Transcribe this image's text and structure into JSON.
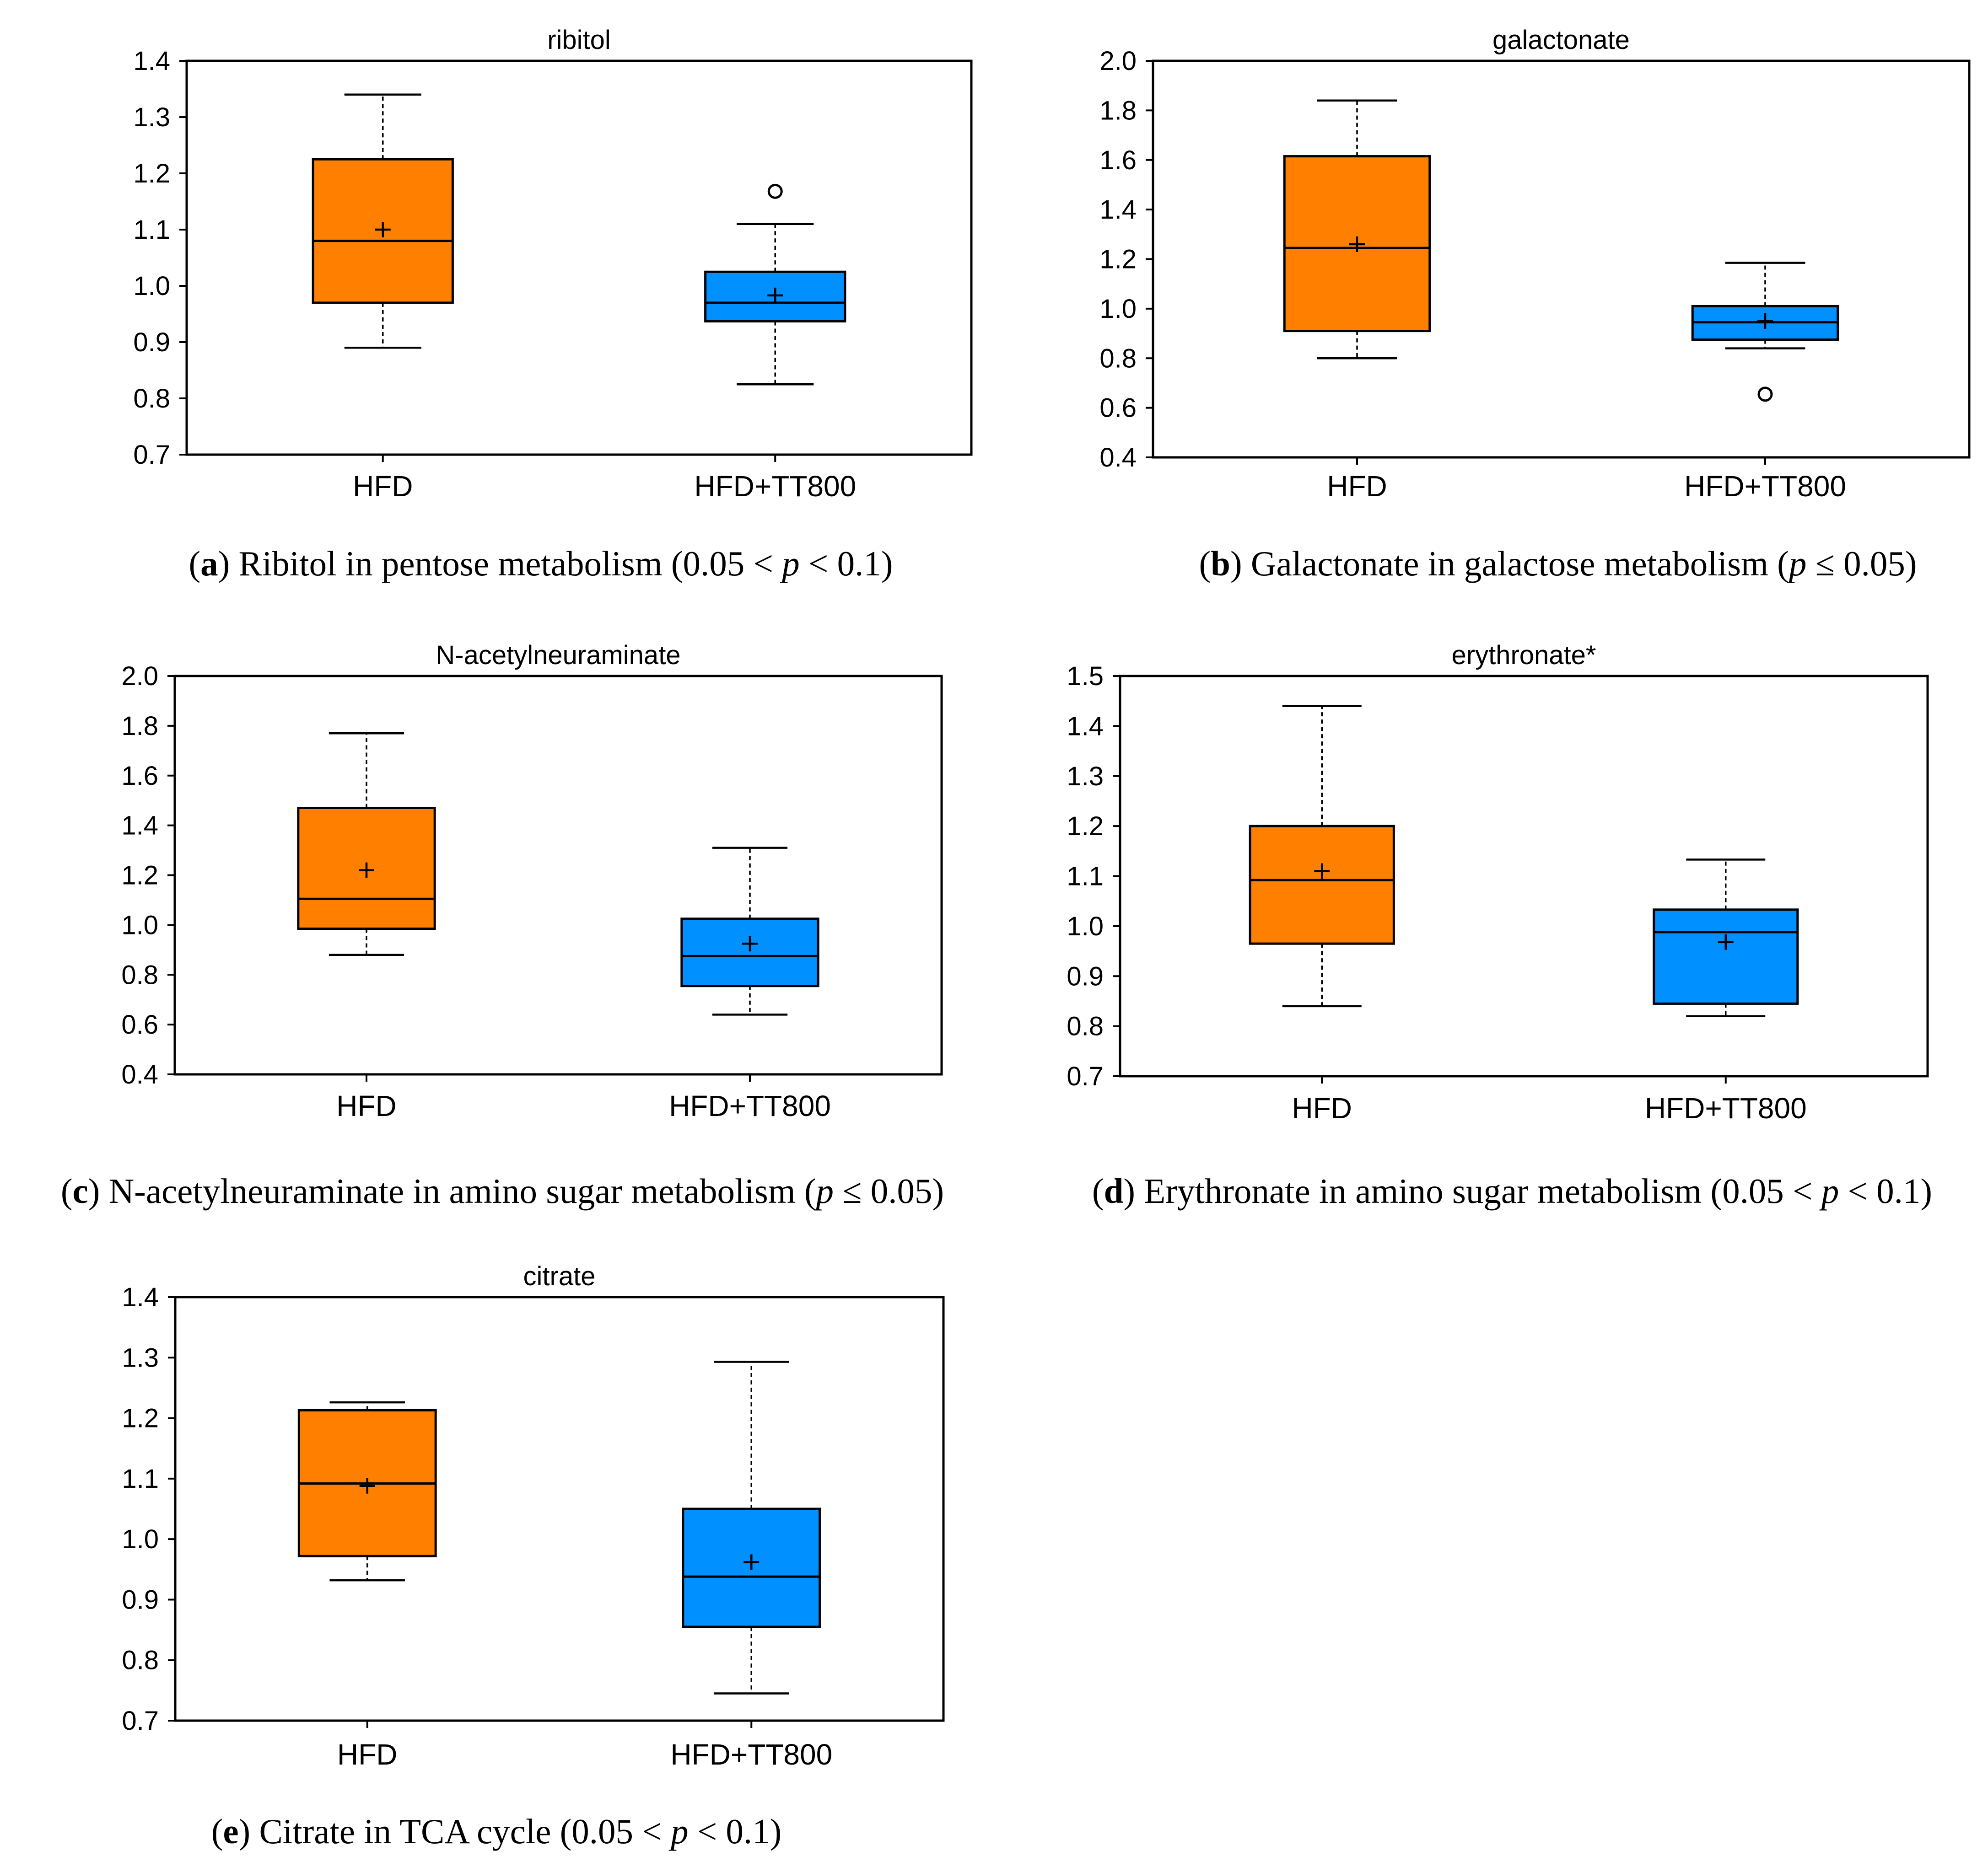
{
  "colors": {
    "hfd": "#FF8000",
    "hfd_tt800": "#0090FF",
    "axis": "#000000"
  },
  "chart_data": [
    {
      "type": "box",
      "title": "ribitol",
      "categories": [
        "HFD",
        "HFD+TT800"
      ],
      "ylim": [
        0.7,
        1.4
      ],
      "yticks": [
        "0.7",
        "0.8",
        "0.9",
        "1.0",
        "1.1",
        "1.2",
        "1.3",
        "1.4"
      ],
      "series": [
        {
          "category": "HFD",
          "whisker_low": 0.89,
          "q1": 0.97,
          "median": 1.08,
          "q3": 1.225,
          "whisker_high": 1.34,
          "mean": 1.1,
          "outliers": []
        },
        {
          "category": "HFD+TT800",
          "whisker_low": 0.825,
          "q1": 0.937,
          "median": 0.97,
          "q3": 1.025,
          "whisker_high": 1.11,
          "mean": 0.983,
          "outliers": [
            1.168
          ]
        }
      ],
      "caption": {
        "letter": "a",
        "before": " Ribitol in pentose metabolism (0.05 < ",
        "p": "p",
        "after": " < 0.1)"
      }
    },
    {
      "type": "box",
      "title": "galactonate",
      "categories": [
        "HFD",
        "HFD+TT800"
      ],
      "ylim": [
        0.4,
        2.0
      ],
      "yticks": [
        "0.4",
        "0.6",
        "0.8",
        "1.0",
        "1.2",
        "1.4",
        "1.6",
        "1.8",
        "2.0"
      ],
      "series": [
        {
          "category": "HFD",
          "whisker_low": 0.8,
          "q1": 0.91,
          "median": 1.245,
          "q3": 1.615,
          "whisker_high": 1.84,
          "mean": 1.26,
          "outliers": []
        },
        {
          "category": "HFD+TT800",
          "whisker_low": 0.84,
          "q1": 0.875,
          "median": 0.945,
          "q3": 1.01,
          "whisker_high": 1.185,
          "mean": 0.95,
          "outliers": [
            0.655
          ]
        }
      ],
      "caption": {
        "letter": "b",
        "before": " Galactonate in galactose metabolism (",
        "p": "p",
        "after": " ≤ 0.05)"
      }
    },
    {
      "type": "box",
      "title": "N-acetylneuraminate",
      "categories": [
        "HFD",
        "HFD+TT800"
      ],
      "ylim": [
        0.4,
        2.0
      ],
      "yticks": [
        "0.4",
        "0.6",
        "0.8",
        "1.0",
        "1.2",
        "1.4",
        "1.6",
        "1.8",
        "2.0"
      ],
      "series": [
        {
          "category": "HFD",
          "whisker_low": 0.88,
          "q1": 0.985,
          "median": 1.105,
          "q3": 1.47,
          "whisker_high": 1.77,
          "mean": 1.22,
          "outliers": []
        },
        {
          "category": "HFD+TT800",
          "whisker_low": 0.64,
          "q1": 0.755,
          "median": 0.875,
          "q3": 1.025,
          "whisker_high": 1.31,
          "mean": 0.925,
          "outliers": []
        }
      ],
      "caption": {
        "letter": "c",
        "before": " N-acetylneuraminate in amino sugar metabolism (",
        "p": "p",
        "after": " ≤ 0.05)"
      }
    },
    {
      "type": "box",
      "title": "erythronate*",
      "categories": [
        "HFD",
        "HFD+TT800"
      ],
      "ylim": [
        0.7,
        1.5
      ],
      "yticks": [
        "0.7",
        "0.8",
        "0.9",
        "1.0",
        "1.1",
        "1.2",
        "1.3",
        "1.4",
        "1.5"
      ],
      "series": [
        {
          "category": "HFD",
          "whisker_low": 0.84,
          "q1": 0.965,
          "median": 1.092,
          "q3": 1.2,
          "whisker_high": 1.44,
          "mean": 1.11,
          "outliers": []
        },
        {
          "category": "HFD+TT800",
          "whisker_low": 0.82,
          "q1": 0.845,
          "median": 0.988,
          "q3": 1.033,
          "whisker_high": 1.133,
          "mean": 0.968,
          "outliers": []
        }
      ],
      "caption": {
        "letter": "d",
        "before": " Erythronate in amino sugar metabolism (0.05 < ",
        "p": "p",
        "after": " < 0.1)"
      }
    },
    {
      "type": "box",
      "title": "citrate",
      "categories": [
        "HFD",
        "HFD+TT800"
      ],
      "ylim": [
        0.7,
        1.4
      ],
      "yticks": [
        "0.7",
        "0.8",
        "0.9",
        "1.0",
        "1.1",
        "1.2",
        "1.3",
        "1.4"
      ],
      "series": [
        {
          "category": "HFD",
          "whisker_low": 0.932,
          "q1": 0.972,
          "median": 1.092,
          "q3": 1.213,
          "whisker_high": 1.226,
          "mean": 1.088,
          "outliers": []
        },
        {
          "category": "HFD+TT800",
          "whisker_low": 0.745,
          "q1": 0.855,
          "median": 0.938,
          "q3": 1.05,
          "whisker_high": 1.293,
          "mean": 0.962,
          "outliers": []
        }
      ],
      "caption": {
        "letter": "e",
        "before": " Citrate in TCA cycle (0.05 < ",
        "p": "p",
        "after": " < 0.1)"
      }
    }
  ]
}
